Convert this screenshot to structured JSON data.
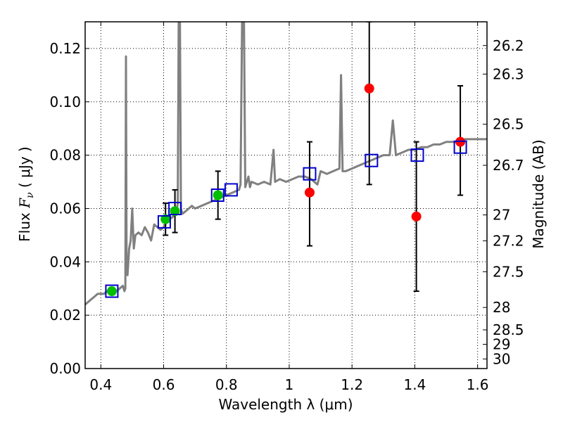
{
  "chart_data": {
    "type": "scatter",
    "title": "",
    "xlabel": "Wavelength  λ (μm)",
    "ylabel_left_prefix": "Flux  ",
    "ylabel_left_math": "F",
    "ylabel_left_math_sub": "ν",
    "ylabel_left_suffix": "  ( μJy )",
    "ylabel_right": "Magnitude (AB)",
    "xlim": [
      0.35,
      1.63
    ],
    "ylim": [
      0.0,
      0.13
    ],
    "grid": true,
    "x_ticks": [
      {
        "value": 0.4,
        "label": "0.4"
      },
      {
        "value": 0.6,
        "label": "0.6"
      },
      {
        "value": 0.8,
        "label": "0.8"
      },
      {
        "value": 1.0,
        "label": "1"
      },
      {
        "value": 1.2,
        "label": "1.2"
      },
      {
        "value": 1.4,
        "label": "1.4"
      },
      {
        "value": 1.6,
        "label": "1.6"
      }
    ],
    "y_ticks": [
      {
        "value": 0.0,
        "label": "0.00"
      },
      {
        "value": 0.02,
        "label": "0.02"
      },
      {
        "value": 0.04,
        "label": "0.04"
      },
      {
        "value": 0.06,
        "label": "0.06"
      },
      {
        "value": 0.08,
        "label": "0.08"
      },
      {
        "value": 0.1,
        "label": "0.10"
      },
      {
        "value": 0.12,
        "label": "0.12"
      }
    ],
    "right_ticks": [
      {
        "flux": 0.1211,
        "label": "26.2"
      },
      {
        "flux": 0.1104,
        "label": "26.3"
      },
      {
        "flux": 0.0916,
        "label": "26.5"
      },
      {
        "flux": 0.0762,
        "label": "26.7"
      },
      {
        "flux": 0.0576,
        "label": "27"
      },
      {
        "flux": 0.0479,
        "label": "27.2"
      },
      {
        "flux": 0.0363,
        "label": "27.5"
      },
      {
        "flux": 0.0229,
        "label": "28"
      },
      {
        "flux": 0.0145,
        "label": "28.5"
      },
      {
        "flux": 0.0091,
        "label": "29"
      },
      {
        "flux": 0.0036,
        "label": "30"
      }
    ],
    "series": [
      {
        "kind": "line",
        "color": "#808080",
        "points": [
          [
            0.35,
            0.024
          ],
          [
            0.36,
            0.025
          ],
          [
            0.37,
            0.026
          ],
          [
            0.38,
            0.027
          ],
          [
            0.39,
            0.028
          ],
          [
            0.4,
            0.028
          ],
          [
            0.41,
            0.028
          ],
          [
            0.42,
            0.029
          ],
          [
            0.43,
            0.029
          ],
          [
            0.44,
            0.03
          ],
          [
            0.45,
            0.029
          ],
          [
            0.46,
            0.03
          ],
          [
            0.47,
            0.031
          ],
          [
            0.475,
            0.029
          ],
          [
            0.478,
            0.03
          ],
          [
            0.48,
            0.117
          ],
          [
            0.482,
            0.036
          ],
          [
            0.485,
            0.035
          ],
          [
            0.49,
            0.045
          ],
          [
            0.495,
            0.048
          ],
          [
            0.5,
            0.06
          ],
          [
            0.505,
            0.045
          ],
          [
            0.51,
            0.05
          ],
          [
            0.52,
            0.051
          ],
          [
            0.53,
            0.05
          ],
          [
            0.54,
            0.053
          ],
          [
            0.55,
            0.051
          ],
          [
            0.56,
            0.048
          ],
          [
            0.57,
            0.054
          ],
          [
            0.58,
            0.053
          ],
          [
            0.59,
            0.052
          ],
          [
            0.6,
            0.053
          ],
          [
            0.61,
            0.055
          ],
          [
            0.62,
            0.056
          ],
          [
            0.63,
            0.057
          ],
          [
            0.64,
            0.058
          ],
          [
            0.645,
            0.062
          ],
          [
            0.648,
            0.13
          ],
          [
            0.652,
            0.13
          ],
          [
            0.655,
            0.06
          ],
          [
            0.66,
            0.058
          ],
          [
            0.67,
            0.059
          ],
          [
            0.68,
            0.06
          ],
          [
            0.69,
            0.061
          ],
          [
            0.7,
            0.06
          ],
          [
            0.72,
            0.061
          ],
          [
            0.74,
            0.062
          ],
          [
            0.76,
            0.063
          ],
          [
            0.78,
            0.064
          ],
          [
            0.8,
            0.065
          ],
          [
            0.82,
            0.066
          ],
          [
            0.84,
            0.067
          ],
          [
            0.845,
            0.069
          ],
          [
            0.85,
            0.13
          ],
          [
            0.856,
            0.13
          ],
          [
            0.86,
            0.068
          ],
          [
            0.87,
            0.072
          ],
          [
            0.875,
            0.068
          ],
          [
            0.88,
            0.07
          ],
          [
            0.9,
            0.069
          ],
          [
            0.92,
            0.07
          ],
          [
            0.94,
            0.069
          ],
          [
            0.95,
            0.082
          ],
          [
            0.955,
            0.07
          ],
          [
            0.97,
            0.071
          ],
          [
            0.99,
            0.07
          ],
          [
            1.01,
            0.071
          ],
          [
            1.03,
            0.072
          ],
          [
            1.05,
            0.072
          ],
          [
            1.07,
            0.071
          ],
          [
            1.09,
            0.069
          ],
          [
            1.1,
            0.074
          ],
          [
            1.12,
            0.073
          ],
          [
            1.14,
            0.074
          ],
          [
            1.16,
            0.075
          ],
          [
            1.165,
            0.11
          ],
          [
            1.17,
            0.074
          ],
          [
            1.18,
            0.074
          ],
          [
            1.2,
            0.075
          ],
          [
            1.22,
            0.076
          ],
          [
            1.24,
            0.077
          ],
          [
            1.26,
            0.078
          ],
          [
            1.28,
            0.079
          ],
          [
            1.3,
            0.08
          ],
          [
            1.32,
            0.08
          ],
          [
            1.33,
            0.093
          ],
          [
            1.34,
            0.08
          ],
          [
            1.36,
            0.081
          ],
          [
            1.38,
            0.082
          ],
          [
            1.4,
            0.082
          ],
          [
            1.42,
            0.083
          ],
          [
            1.44,
            0.083
          ],
          [
            1.46,
            0.084
          ],
          [
            1.48,
            0.084
          ],
          [
            1.5,
            0.085
          ],
          [
            1.52,
            0.085
          ],
          [
            1.54,
            0.085
          ],
          [
            1.56,
            0.086
          ],
          [
            1.58,
            0.086
          ],
          [
            1.6,
            0.086
          ],
          [
            1.62,
            0.086
          ],
          [
            1.63,
            0.086
          ]
        ]
      },
      {
        "kind": "open-square",
        "color": "#0000cc",
        "points": [
          [
            0.435,
            0.029
          ],
          [
            0.602,
            0.055
          ],
          [
            0.636,
            0.06
          ],
          [
            0.772,
            0.065
          ],
          [
            0.815,
            0.067
          ],
          [
            1.065,
            0.073
          ],
          [
            1.262,
            0.078
          ],
          [
            1.408,
            0.08
          ],
          [
            1.545,
            0.083
          ]
        ]
      },
      {
        "kind": "dot",
        "color": "#00c000",
        "points": [
          [
            0.435,
            0.029
          ],
          [
            0.606,
            0.056
          ],
          [
            0.636,
            0.059
          ],
          [
            0.773,
            0.065
          ]
        ]
      },
      {
        "kind": "dot",
        "color": "#ff0000",
        "points": [
          [
            1.065,
            0.066
          ],
          [
            1.255,
            0.105
          ],
          [
            1.405,
            0.057
          ],
          [
            1.545,
            0.085
          ]
        ]
      },
      {
        "kind": "errorbar",
        "color": "#000000",
        "bars": [
          [
            0.606,
            0.05,
            0.062
          ],
          [
            0.636,
            0.051,
            0.067
          ],
          [
            0.773,
            0.056,
            0.074
          ],
          [
            1.065,
            0.046,
            0.085
          ],
          [
            1.255,
            0.069,
            0.13
          ],
          [
            1.405,
            0.029,
            0.085
          ],
          [
            1.545,
            0.065,
            0.106
          ]
        ]
      }
    ]
  }
}
